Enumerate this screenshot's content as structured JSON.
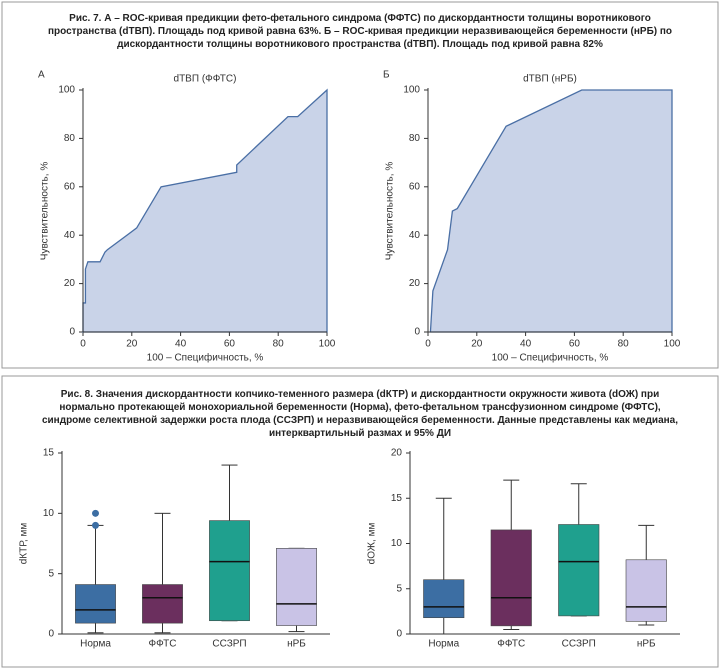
{
  "captions": [
    "Рис. 7. А – ROC-кривая предикции фето-фетального синдрома (ФФТС) по дискордантности толщины воротникового пространства (dТВП). Площадь под кривой равна 63%. Б – ROC-кривая предикции неразвивающейся беременности (нРБ) по дискордантности толщины воротникового пространства (dТВП). Площадь под кривой равна 82%",
    "Рис. 8. Значения дискордантности копчико-теменного размера (dКТР) и дискордантности окружности живота (dОЖ) при нормально протекающей монохориальной беременности (Норма), фето-фетальном трансфузионном синдроме (ФФТС), синдроме селективной задержки роста плода (ССЗРП) и неразвивающейся беременности. Данные представлены как медиана, интерквартильный размах и 95% ДИ"
  ],
  "chart_data": [
    {
      "type": "area",
      "label": "А",
      "title": "dТВП (ФФТС)",
      "xlabel": "100 – Специфичность, %",
      "ylabel": "Чувствительность, %",
      "color": "#c9d3e8",
      "line_color": "#4a6fa5",
      "x": [
        0,
        0,
        1,
        1,
        2,
        7,
        9,
        10,
        22,
        32,
        63,
        63,
        84,
        88,
        100
      ],
      "values": [
        0,
        12,
        12,
        26,
        29,
        29,
        33,
        34,
        43,
        60,
        66,
        69,
        89,
        89,
        100
      ],
      "xlim": [
        0,
        100
      ],
      "ylim": [
        0,
        100
      ],
      "xticks": [
        0,
        20,
        40,
        60,
        80,
        100
      ],
      "yticks": [
        0,
        20,
        40,
        60,
        80,
        100
      ]
    },
    {
      "type": "area",
      "label": "Б",
      "title": "dТВП (нРБ)",
      "xlabel": "100 – Специфичность, %",
      "ylabel": "Чувствительность, %",
      "color": "#c9d3e8",
      "line_color": "#4a6fa5",
      "x": [
        1,
        2,
        8,
        10,
        12,
        32,
        63,
        100
      ],
      "values": [
        0,
        17,
        34,
        50,
        51,
        85,
        100,
        100
      ],
      "xlim": [
        0,
        100
      ],
      "ylim": [
        0,
        100
      ],
      "xticks": [
        0,
        20,
        40,
        60,
        80,
        100
      ],
      "yticks": [
        0,
        20,
        40,
        60,
        80,
        100
      ]
    },
    {
      "type": "box",
      "ylabel": "dКТР, мм",
      "categories": [
        "Норма",
        "ФФТС",
        "ССЗРП",
        "нРБ"
      ],
      "colors": [
        "#3c6ea3",
        "#6b2f5e",
        "#1fa08e",
        "#c9c3e6"
      ],
      "boxes": [
        {
          "low": 0.1,
          "q1": 0.9,
          "median": 2,
          "q3": 4.1,
          "high": 9,
          "outliers": [
            9,
            10
          ]
        },
        {
          "low": 0.1,
          "q1": 0.9,
          "median": 3,
          "q3": 4.1,
          "high": 10
        },
        {
          "low": 1.1,
          "q1": 1.1,
          "median": 6,
          "q3": 9.4,
          "high": 14
        },
        {
          "low": 0.2,
          "q1": 0.7,
          "median": 2.5,
          "q3": 7.1,
          "high": 7.1
        }
      ],
      "ylim": [
        0,
        15
      ],
      "yticks": [
        0,
        5,
        10,
        15
      ]
    },
    {
      "type": "box",
      "ylabel": "dОЖ, мм",
      "categories": [
        "Норма",
        "ФФТС",
        "ССЗРП",
        "нРБ"
      ],
      "colors": [
        "#3c6ea3",
        "#6b2f5e",
        "#1fa08e",
        "#c9c3e6"
      ],
      "boxes": [
        {
          "low": 0,
          "q1": 1.8,
          "median": 3,
          "q3": 6,
          "high": 15
        },
        {
          "low": 0.5,
          "q1": 0.9,
          "median": 4,
          "q3": 11.5,
          "high": 17
        },
        {
          "low": 2,
          "q1": 2,
          "median": 8,
          "q3": 12.1,
          "high": 16.6
        },
        {
          "low": 1,
          "q1": 1.4,
          "median": 3,
          "q3": 8.2,
          "high": 12
        }
      ],
      "ylim": [
        0,
        20
      ],
      "yticks": [
        0,
        5,
        10,
        15,
        20
      ]
    }
  ]
}
